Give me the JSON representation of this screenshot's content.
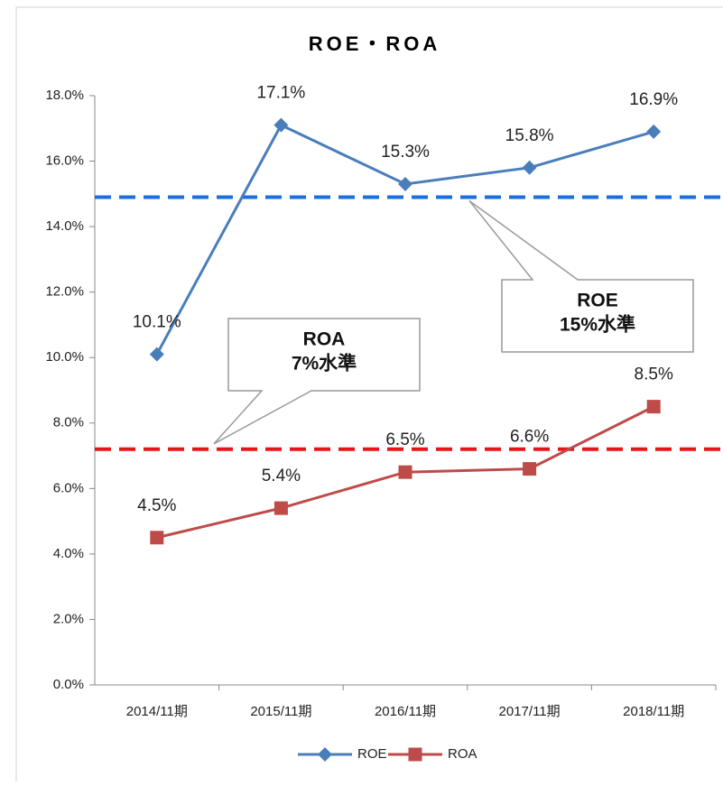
{
  "chart_data": {
    "type": "line",
    "title": "ROE・ROA",
    "categories": [
      "2014/11期",
      "2015/11期",
      "2016/11期",
      "2017/11期",
      "2018/11期"
    ],
    "series": [
      {
        "name": "ROE",
        "color": "#4a7ebb",
        "marker": "diamond",
        "values": [
          10.1,
          17.1,
          15.3,
          15.8,
          16.9
        ],
        "value_labels": [
          "10.1%",
          "17.1%",
          "15.3%",
          "15.8%",
          "16.9%"
        ]
      },
      {
        "name": "ROA",
        "color": "#be4b48",
        "marker": "square",
        "values": [
          4.5,
          5.4,
          6.5,
          6.6,
          8.5
        ],
        "value_labels": [
          "4.5%",
          "5.4%",
          "6.5%",
          "6.6%",
          "8.5%"
        ]
      }
    ],
    "ylim": [
      0,
      18
    ],
    "yticks": [
      {
        "value": 0,
        "label": "0.0%"
      },
      {
        "value": 2,
        "label": "2.0%"
      },
      {
        "value": 4,
        "label": "4.0%"
      },
      {
        "value": 6,
        "label": "6.0%"
      },
      {
        "value": 8,
        "label": "8.0%"
      },
      {
        "value": 10,
        "label": "10.0%"
      },
      {
        "value": 12,
        "label": "12.0%"
      },
      {
        "value": 14,
        "label": "14.0%"
      },
      {
        "value": 16,
        "label": "16.0%"
      },
      {
        "value": 18,
        "label": "18.0%"
      }
    ],
    "reference_lines": [
      {
        "value": 14.9,
        "color": "#1a6fe0",
        "label": [
          "ROE",
          "15%水準"
        ]
      },
      {
        "value": 7.2,
        "color": "#e8141a",
        "label": [
          "ROA",
          "7%水準"
        ]
      }
    ],
    "legend": "bottom"
  }
}
